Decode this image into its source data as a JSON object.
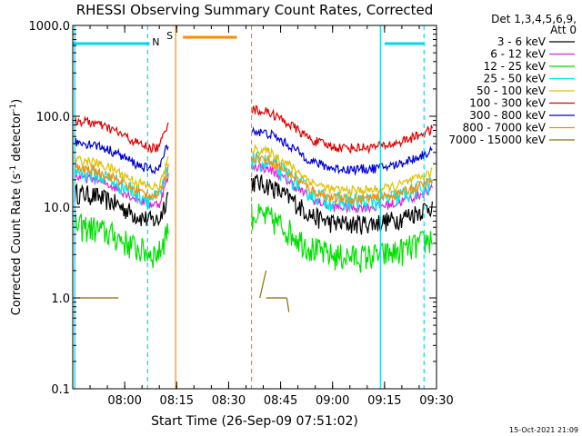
{
  "chart_data": {
    "type": "line",
    "title": "RHESSI Observing Summary Count Rates, Corrected",
    "xlabel": "Start Time (26-Sep-09 07:51:02)",
    "ylabel_main": "Corrected Count Rate (s",
    "ylabel_sup1": "-1",
    "ylabel_mid": " detector",
    "ylabel_sup2": "-1",
    "ylabel_end": ")",
    "footer": "15-Oct-2021 21:09",
    "y_scale": "log",
    "ylim": [
      0.1,
      1000.0
    ],
    "xlim_minutes": [
      7.75,
      9.5
    ],
    "x_tick_labels": [
      "08:00",
      "08:15",
      "08:30",
      "08:45",
      "09:00",
      "09:15",
      "09:30"
    ],
    "x_tick_values": [
      8.0,
      8.25,
      8.5,
      8.75,
      9.0,
      9.25,
      9.5
    ],
    "y_tick_labels": [
      "0.1",
      "1.0",
      "10.0",
      "100.0",
      "1000.0"
    ],
    "y_tick_values": [
      0.1,
      1.0,
      10.0,
      100.0,
      1000.0
    ],
    "legend_header": [
      "Det 1,3,4,5,6,9,",
      "Att 0"
    ],
    "legend_position": "right",
    "series": [
      {
        "name": "3 - 6 keV",
        "color": "#000000"
      },
      {
        "name": "6 - 12 keV",
        "color": "#e020e0"
      },
      {
        "name": "12 - 25 keV",
        "color": "#00e000"
      },
      {
        "name": "25 - 50 keV",
        "color": "#00e8e8"
      },
      {
        "name": "50 - 100 keV",
        "color": "#e0c000"
      },
      {
        "name": "100 - 300 keV",
        "color": "#e00000"
      },
      {
        "name": "300 - 800 keV",
        "color": "#0000d0"
      },
      {
        "name": "800 - 7000 keV",
        "color": "#ff8c00"
      },
      {
        "name": "7000 - 15000 keV",
        "color": "#8b7000"
      }
    ],
    "annotations": [
      {
        "text": "N",
        "color": "#00c8e8"
      },
      {
        "text": "S",
        "color": "#ff8c00"
      }
    ],
    "gaps_hours": [
      [
        8.27,
        8.65
      ]
    ],
    "night_bars": [
      [
        7.75,
        8.12
      ],
      [
        9.25,
        9.44
      ]
    ],
    "saa_bar": [
      8.28,
      8.54
    ],
    "vlines": [
      {
        "x": 8.11,
        "color": "#00d8f0",
        "style": "dashed"
      },
      {
        "x": 8.245,
        "color": "#ff8c00",
        "style": "solid"
      },
      {
        "x": 8.61,
        "color": "#ff8c00",
        "style": "dashed"
      },
      {
        "x": 9.23,
        "color": "#00d8f0",
        "style": "solid"
      },
      {
        "x": 9.44,
        "color": "#00d8f0",
        "style": "dashed"
      },
      {
        "x": 7.76,
        "color": "#00d8f0",
        "style": "solid"
      }
    ],
    "profile_segments": [
      {
        "x": [
          7.76,
          7.85,
          7.95,
          8.05,
          8.12,
          8.165,
          8.21
        ],
        "y": [
          90,
          85,
          70,
          52,
          45,
          45,
          90
        ]
      },
      {
        "x": [
          8.61,
          8.7,
          8.8,
          8.9,
          9.0,
          9.1,
          9.2,
          9.3,
          9.4,
          9.48
        ],
        "y": [
          120,
          110,
          80,
          55,
          46,
          45,
          46,
          50,
          60,
          72
        ]
      }
    ],
    "band_ratios": [
      0.16,
      0.24,
      0.07,
      0.28,
      0.37,
      1.0,
      0.58,
      0.3,
      0.012
    ],
    "trace_7000": [
      {
        "x": [
          7.78,
          7.97
        ],
        "y": [
          1.0,
          1.0
        ]
      },
      {
        "x": [
          8.65,
          8.68
        ],
        "y": [
          1.0,
          2.0
        ]
      },
      {
        "x": [
          8.68,
          8.78
        ],
        "y": [
          1.0,
          1.0
        ]
      },
      {
        "x": [
          8.78,
          8.79
        ],
        "y": [
          1.0,
          0.7
        ]
      }
    ]
  }
}
